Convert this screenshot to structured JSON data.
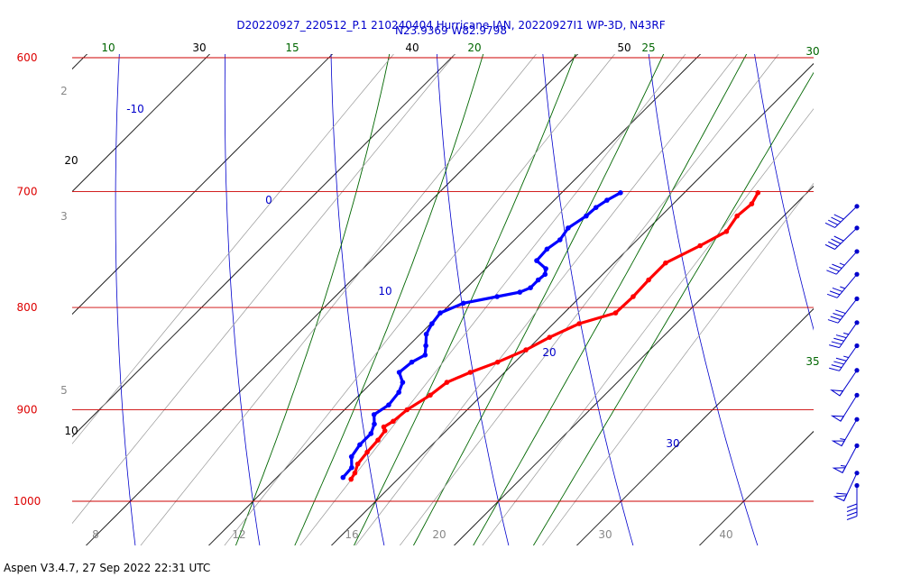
{
  "chart_data": {
    "type": "line",
    "chart_kind": "skew-T log-P thermodynamic diagram",
    "title": "D20220927_220512_P.1 210240404 Hurricane IAN, 20220927I1 WP-3D, N43RF",
    "subtitle": "N23.9369 W82.9798",
    "y_axis": {
      "quantity": "pressure",
      "scale": "log",
      "range": [
        1040,
        600
      ],
      "isobar_labels": [
        "600",
        "700",
        "800",
        "900",
        "1000"
      ],
      "isobars": [
        600,
        700,
        800,
        900,
        1000
      ]
    },
    "isotherms": [
      {
        "label": "30",
        "value": 30
      },
      {
        "label": "20",
        "value": 20
      },
      {
        "label": "10",
        "value": 10
      }
    ],
    "isotherm_top_labels": [
      {
        "label": "30",
        "value": 30
      },
      {
        "label": "40",
        "value": 40
      },
      {
        "label": "50",
        "value": 50
      }
    ],
    "dry_adiabat_labels": [
      {
        "label": "-10",
        "value": -10
      },
      {
        "label": "0",
        "value": 0
      },
      {
        "label": "10",
        "value": 10
      },
      {
        "label": "20",
        "value": 20
      },
      {
        "label": "30",
        "value": 30
      }
    ],
    "moist_adiabat_labels": [
      {
        "label": "10",
        "value": 10
      },
      {
        "label": "15",
        "value": 15
      },
      {
        "label": "20",
        "value": 20
      },
      {
        "label": "25",
        "value": 25
      },
      {
        "label": "30",
        "value": 30
      },
      {
        "label": "35",
        "value": 35
      }
    ],
    "mixing_ratio_side_labels": [
      "2",
      "3",
      "5"
    ],
    "mixing_ratio_bottom_labels": [
      "8",
      "12",
      "16",
      "20",
      "30",
      "40"
    ],
    "series": [
      {
        "name": "",
        "quantity": "temperature",
        "color": "#ff0000",
        "points": [
          [
            701,
            26.0
          ],
          [
            710,
            26.4
          ],
          [
            720,
            26.2
          ],
          [
            733,
            26.6
          ],
          [
            745,
            25.6
          ],
          [
            760,
            24.2
          ],
          [
            775,
            24.2
          ],
          [
            790,
            24.3
          ],
          [
            805,
            24.2
          ],
          [
            815,
            22.1
          ],
          [
            828,
            20.8
          ],
          [
            840,
            19.9
          ],
          [
            852,
            18.6
          ],
          [
            862,
            17.2
          ],
          [
            872,
            16.1
          ],
          [
            885,
            15.8
          ],
          [
            900,
            15.1
          ],
          [
            912,
            14.9
          ],
          [
            918,
            14.6
          ],
          [
            922,
            15.0
          ],
          [
            932,
            15.2
          ],
          [
            945,
            15.3
          ],
          [
            958,
            15.5
          ],
          [
            968,
            16.0
          ],
          [
            975,
            16.2
          ]
        ]
      },
      {
        "name": "",
        "quantity": "dewpoint",
        "color": "#0000ff",
        "points": [
          [
            701,
            14.8
          ],
          [
            707,
            14.3
          ],
          [
            713,
            14.0
          ],
          [
            720,
            13.9
          ],
          [
            730,
            13.4
          ],
          [
            740,
            13.7
          ],
          [
            748,
            13.4
          ],
          [
            758,
            13.5
          ],
          [
            765,
            14.9
          ],
          [
            770,
            15.3
          ],
          [
            775,
            15.2
          ],
          [
            782,
            15.2
          ],
          [
            786,
            14.7
          ],
          [
            790,
            13.2
          ],
          [
            796,
            11.0
          ],
          [
            805,
            9.9
          ],
          [
            815,
            10.1
          ],
          [
            825,
            10.5
          ],
          [
            836,
            11.4
          ],
          [
            845,
            12.1
          ],
          [
            852,
            11.6
          ],
          [
            862,
            11.4
          ],
          [
            872,
            12.5
          ],
          [
            882,
            13.0
          ],
          [
            895,
            13.2
          ],
          [
            905,
            12.8
          ],
          [
            915,
            13.6
          ],
          [
            925,
            14.1
          ],
          [
            937,
            14.1
          ],
          [
            950,
            14.4
          ],
          [
            962,
            15.3
          ],
          [
            973,
            15.4
          ]
        ]
      }
    ],
    "wind_barbs": [
      {
        "pressure": 712,
        "speed_kt": 40,
        "direction_deg": 226
      },
      {
        "pressure": 730,
        "speed_kt": 40,
        "direction_deg": 226
      },
      {
        "pressure": 750,
        "speed_kt": 35,
        "direction_deg": 222
      },
      {
        "pressure": 770,
        "speed_kt": 35,
        "direction_deg": 220
      },
      {
        "pressure": 792,
        "speed_kt": 40,
        "direction_deg": 218
      },
      {
        "pressure": 814,
        "speed_kt": 45,
        "direction_deg": 215
      },
      {
        "pressure": 836,
        "speed_kt": 45,
        "direction_deg": 215
      },
      {
        "pressure": 860,
        "speed_kt": 50,
        "direction_deg": 214
      },
      {
        "pressure": 885,
        "speed_kt": 50,
        "direction_deg": 212
      },
      {
        "pressure": 910,
        "speed_kt": 55,
        "direction_deg": 210
      },
      {
        "pressure": 938,
        "speed_kt": 55,
        "direction_deg": 208
      },
      {
        "pressure": 968,
        "speed_kt": 60,
        "direction_deg": 205
      },
      {
        "pressure": 982,
        "speed_kt": 40,
        "direction_deg": 180
      }
    ],
    "colors": {
      "isobar": "#cc0000",
      "isobar_label": "#dd0000",
      "isotherm": "#000000",
      "dry_adiabat": "#0000cc",
      "moist_adiabat": "#006600",
      "mixing_ratio": "#999999",
      "barb": "#0000cc"
    }
  },
  "footer": "Aspen V3.4.7, 27 Sep 2022  22:31 UTC"
}
